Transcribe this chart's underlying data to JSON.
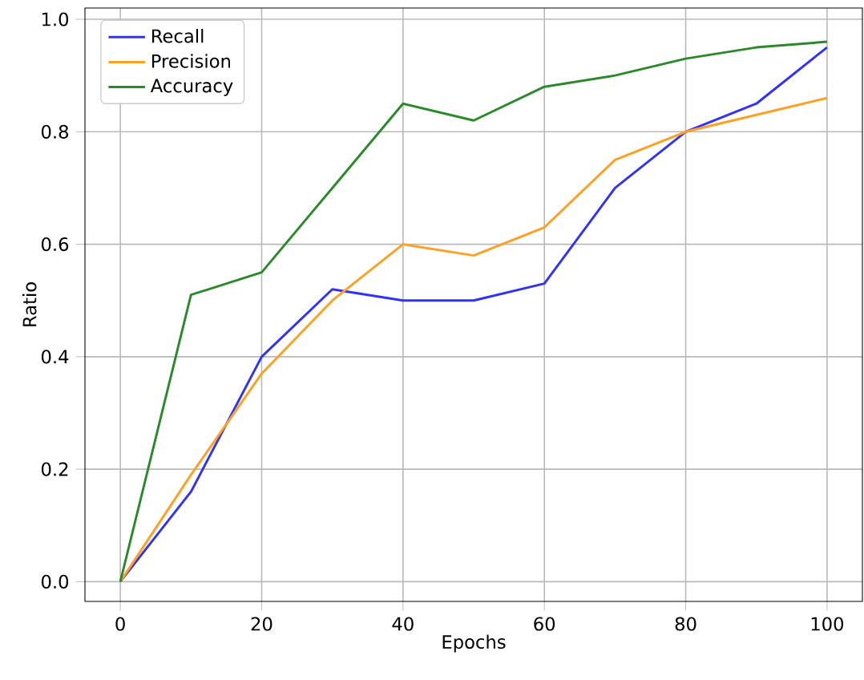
{
  "chart_data": {
    "type": "line",
    "xlabel": "Epochs",
    "ylabel": "Ratio",
    "x": [
      0,
      10,
      20,
      30,
      40,
      50,
      60,
      70,
      80,
      90,
      100
    ],
    "series": [
      {
        "name": "Recall",
        "color": "#3030ff",
        "values": [
          0,
          0.16,
          0.4,
          0.52,
          0.5,
          0.5,
          0.53,
          0.7,
          0.8,
          0.85,
          0.95
        ]
      },
      {
        "name": "Precision",
        "color": "#ffa020",
        "values": [
          0,
          0.19,
          0.37,
          0.5,
          0.6,
          0.58,
          0.63,
          0.75,
          0.8,
          0.83,
          0.86
        ]
      },
      {
        "name": "Accuracy",
        "color": "#2a8a2a",
        "values": [
          0,
          0.51,
          0.55,
          0.7,
          0.85,
          0.82,
          0.88,
          0.9,
          0.93,
          0.95,
          0.96
        ]
      }
    ],
    "xlim": [
      -5,
      105
    ],
    "ylim": [
      -0.035,
      1.02
    ],
    "xticks": [
      0,
      20,
      40,
      60,
      80,
      100
    ],
    "yticks": [
      {
        "value": 0,
        "label": "0.0"
      },
      {
        "value": 0.2,
        "label": "0.2"
      },
      {
        "value": 0.4,
        "label": "0.4"
      },
      {
        "value": 0.6,
        "label": "0.6"
      },
      {
        "value": 0.8,
        "label": "0.8"
      },
      {
        "value": 1.0,
        "label": "1.0"
      }
    ],
    "grid": true,
    "legend": "top left",
    "marker": "none",
    "line_style": "solid"
  }
}
